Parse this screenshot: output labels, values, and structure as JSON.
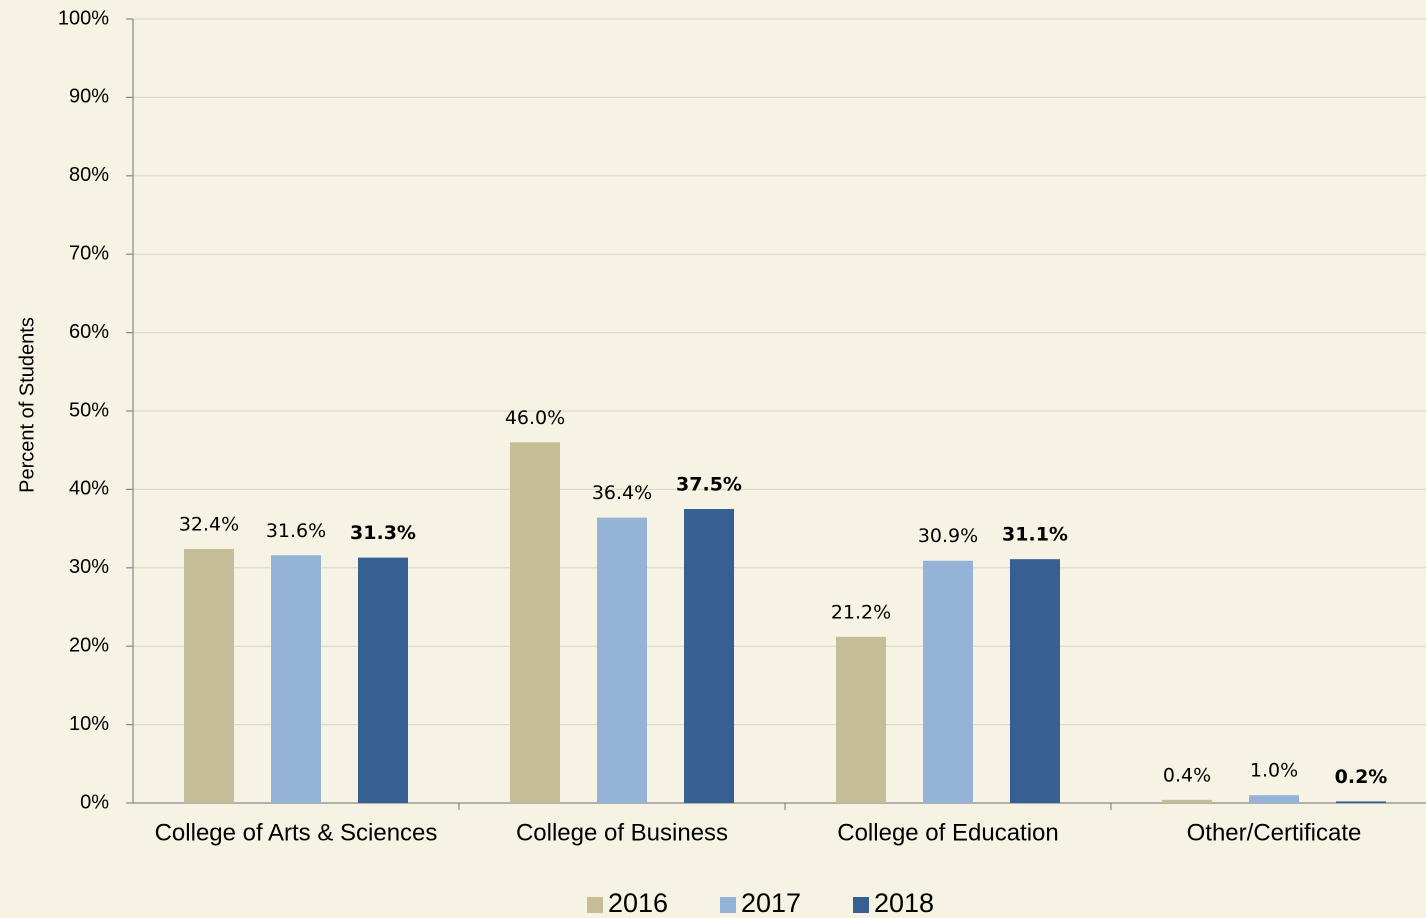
{
  "chart_data": {
    "type": "bar",
    "y_label": "Percent of Students",
    "categories": [
      "College of Arts & Sciences",
      "College of Business",
      "College of Education",
      "Other/Certificate"
    ],
    "series": [
      {
        "name": "2016",
        "color": "#c4bd97",
        "values": [
          32.4,
          46.0,
          21.2,
          0.4
        ],
        "value_labels": [
          "32.4%",
          "46.0%",
          "21.2%",
          "0.4%"
        ]
      },
      {
        "name": "2017",
        "color": "#95b3d7",
        "values": [
          31.6,
          36.4,
          30.9,
          1.0
        ],
        "value_labels": [
          "31.6%",
          "36.4%",
          "30.9%",
          "1.0%"
        ]
      },
      {
        "name": "2018",
        "color": "#366092",
        "values": [
          31.3,
          37.5,
          31.1,
          0.2
        ],
        "value_labels": [
          "31.3%",
          "37.5%",
          "31.1%",
          "0.2%"
        ],
        "bold_labels": true
      }
    ],
    "ylim": [
      0,
      100
    ],
    "yticks": [
      {
        "value": 0,
        "label": "0%"
      },
      {
        "value": 10,
        "label": "10%"
      },
      {
        "value": 20,
        "label": "20%"
      },
      {
        "value": 30,
        "label": "30%"
      },
      {
        "value": 40,
        "label": "40%"
      },
      {
        "value": 50,
        "label": "50%"
      },
      {
        "value": 60,
        "label": "60%"
      },
      {
        "value": 70,
        "label": "70%"
      },
      {
        "value": 80,
        "label": "80%"
      },
      {
        "value": 90,
        "label": "90%"
      },
      {
        "value": 100,
        "label": "100%"
      }
    ],
    "grid": true,
    "legend": "bottom"
  }
}
